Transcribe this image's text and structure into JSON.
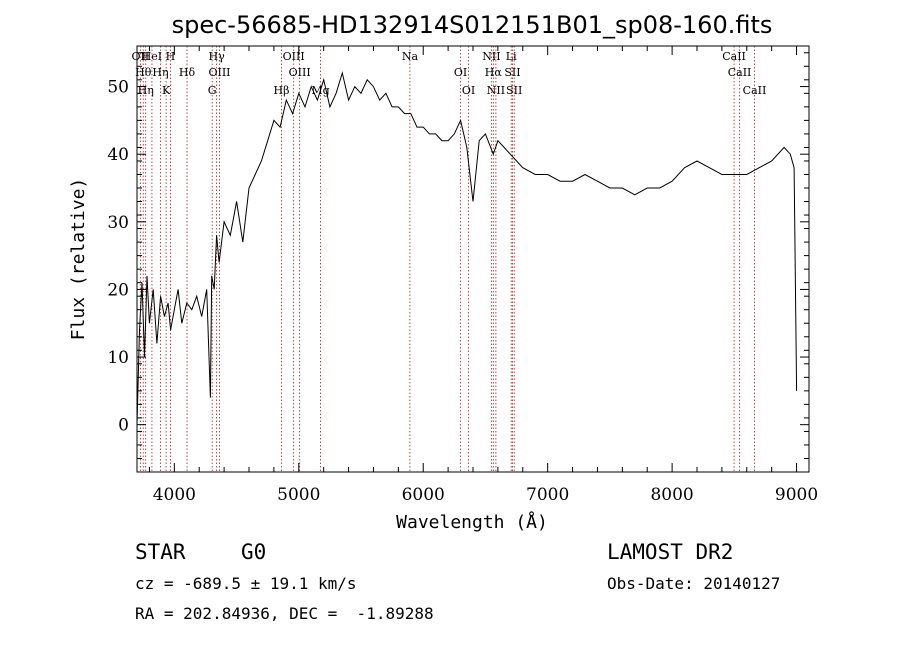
{
  "chart_data": {
    "type": "line",
    "title": "spec-56685-HD132914S012151B01_sp08-160.fits",
    "xlabel": "Wavelength (Å)",
    "ylabel": "Flux (relative)",
    "xlim": [
      3700,
      9100
    ],
    "ylim": [
      -7,
      56
    ],
    "xticks": [
      4000,
      5000,
      6000,
      7000,
      8000,
      9000
    ],
    "yticks": [
      0,
      10,
      20,
      30,
      40,
      50
    ],
    "grid": false,
    "series": [
      {
        "x": [
          3700,
          3720,
          3740,
          3760,
          3780,
          3800,
          3830,
          3860,
          3890,
          3920,
          3950,
          3970,
          4000,
          4030,
          4060,
          4100,
          4140,
          4180,
          4220,
          4260,
          4290,
          4300,
          4320,
          4340,
          4360,
          4400,
          4450,
          4500,
          4550,
          4600,
          4650,
          4700,
          4750,
          4800,
          4850,
          4900,
          4950,
          5000,
          5050,
          5100,
          5150,
          5200,
          5250,
          5300,
          5350,
          5400,
          5450,
          5500,
          5550,
          5600,
          5650,
          5700,
          5750,
          5800,
          5850,
          5900,
          5950,
          6000,
          6050,
          6100,
          6150,
          6200,
          6250,
          6300,
          6350,
          6400,
          6450,
          6500,
          6563,
          6600,
          6650,
          6700,
          6750,
          6800,
          6900,
          7000,
          7100,
          7200,
          7300,
          7400,
          7500,
          7600,
          7700,
          7800,
          7900,
          8000,
          8100,
          8200,
          8300,
          8400,
          8500,
          8600,
          8700,
          8800,
          8900,
          8950,
          8980,
          9000
        ],
        "values": [
          0,
          14,
          21,
          10,
          22,
          15,
          20,
          12,
          19,
          16,
          18,
          14,
          17,
          20,
          15,
          18,
          17,
          19,
          16,
          20,
          4,
          22,
          20,
          28,
          24,
          30,
          28,
          33,
          27,
          35,
          37,
          39,
          42,
          45,
          44,
          48,
          46,
          49,
          47,
          50,
          48,
          51,
          47,
          49,
          52,
          48,
          50,
          49,
          51,
          50,
          48,
          49,
          47,
          47,
          46,
          46,
          44,
          44,
          43,
          43,
          42,
          42,
          43,
          45,
          41,
          33,
          42,
          43,
          40,
          42,
          41,
          40,
          39,
          38,
          37,
          37,
          36,
          36,
          37,
          36,
          35,
          35,
          34,
          35,
          35,
          36,
          38,
          39,
          38,
          37,
          37,
          37,
          38,
          39,
          41,
          40,
          38,
          5
        ]
      }
    ],
    "lines": [
      {
        "x": 3727,
        "label": "OII"
      },
      {
        "x": 3750,
        "label": "Hθ"
      },
      {
        "x": 3770,
        "label": "Hη"
      },
      {
        "x": 3820,
        "label": "HeI"
      },
      {
        "x": 3889,
        "label": "Hη"
      },
      {
        "x": 3934,
        "label": "K"
      },
      {
        "x": 3969,
        "label": "H"
      },
      {
        "x": 4102,
        "label": "Hδ"
      },
      {
        "x": 4304,
        "label": "G"
      },
      {
        "x": 4340,
        "label": "Hγ"
      },
      {
        "x": 4363,
        "label": "OIII"
      },
      {
        "x": 4861,
        "label": "Hβ"
      },
      {
        "x": 4959,
        "label": "OIII"
      },
      {
        "x": 5007,
        "label": "OIII"
      },
      {
        "x": 5175,
        "label": "Mg"
      },
      {
        "x": 5893,
        "label": "Na"
      },
      {
        "x": 6300,
        "label": "OI"
      },
      {
        "x": 6364,
        "label": "OI"
      },
      {
        "x": 6548,
        "label": "NII"
      },
      {
        "x": 6563,
        "label": "Hα"
      },
      {
        "x": 6584,
        "label": "NII"
      },
      {
        "x": 6707,
        "label": "Li"
      },
      {
        "x": 6717,
        "label": "SII"
      },
      {
        "x": 6731,
        "label": "SII"
      },
      {
        "x": 8498,
        "label": "CaII"
      },
      {
        "x": 8542,
        "label": "CaII"
      },
      {
        "x": 8662,
        "label": "CaII"
      }
    ]
  },
  "info": {
    "class": "STAR",
    "subclass": "G0",
    "survey": "LAMOST DR2",
    "cz": "cz = -689.5 ± 19.1 km/s",
    "obs_date": "Obs-Date: 20140127",
    "radec": "RA = 202.84936, DEC =  -1.89288"
  }
}
